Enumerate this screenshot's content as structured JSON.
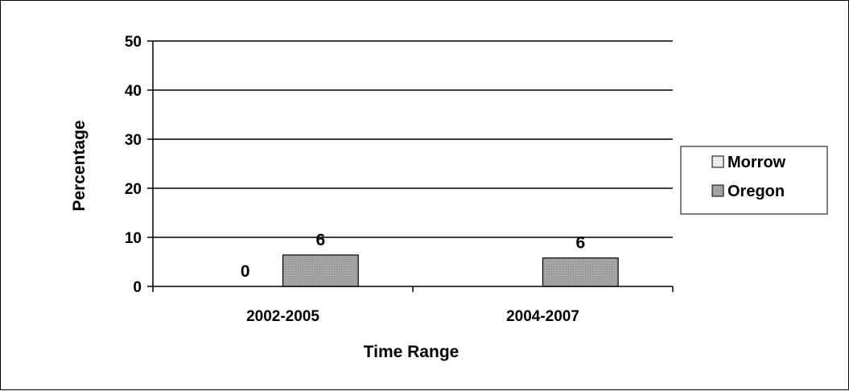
{
  "chart_data": {
    "type": "bar",
    "title": "",
    "xlabel": "Time Range",
    "ylabel": "Percentage",
    "categories": [
      "2002-2005",
      "2004-2007"
    ],
    "series": [
      {
        "name": "Morrow",
        "values": [
          0,
          null
        ],
        "labels": [
          "0",
          ""
        ],
        "color": "#d9d9d9"
      },
      {
        "name": "Oregon",
        "values": [
          6.4,
          5.8
        ],
        "labels": [
          "6",
          "6"
        ],
        "color": "#999999"
      }
    ],
    "ylim": [
      0,
      50
    ],
    "yticks": [
      0,
      10,
      20,
      30,
      40,
      50
    ],
    "grid": true,
    "legend_position": "right"
  }
}
